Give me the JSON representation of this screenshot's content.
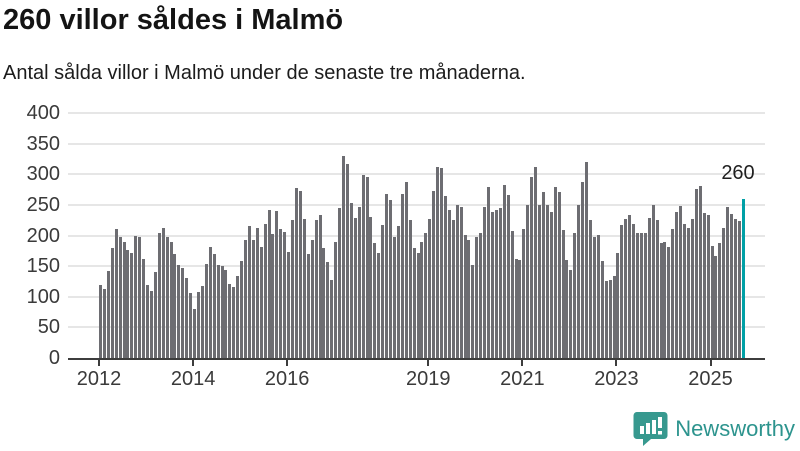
{
  "header": {
    "title": "260 villor såldes i Malmö",
    "subtitle": "Antal sålda villor i Malmö under de senaste tre månaderna."
  },
  "chart_data": {
    "type": "bar",
    "title": "260 villor såldes i Malmö",
    "subtitle": "Antal sålda villor i Malmö under de senaste tre månaderna.",
    "x_unit": "month",
    "x_start": "2012-01",
    "x_end": "2025-09",
    "ylim": [
      0,
      400
    ],
    "yticks": [
      0,
      50,
      100,
      150,
      200,
      250,
      300,
      350,
      400
    ],
    "xticks": [
      2012,
      2014,
      2016,
      2019,
      2021,
      2023,
      2025
    ],
    "grid": "horizontal",
    "legend": "none",
    "values": [
      120,
      112,
      142,
      180,
      210,
      198,
      190,
      177,
      171,
      199,
      197,
      162,
      120,
      110,
      140,
      204,
      212,
      197,
      189,
      170,
      152,
      147,
      131,
      106,
      80,
      107,
      118,
      153,
      181,
      170,
      152,
      151,
      144,
      121,
      116,
      134,
      159,
      193,
      216,
      193,
      212,
      182,
      219,
      241,
      203,
      240,
      210,
      205,
      173,
      225,
      278,
      272,
      227,
      170,
      193,
      225,
      234,
      179,
      156,
      127,
      190,
      245,
      329,
      316,
      253,
      228,
      247,
      298,
      296,
      231,
      187,
      171,
      217,
      267,
      258,
      197,
      216,
      267,
      288,
      225,
      179,
      171,
      190,
      204,
      227,
      272,
      312,
      311,
      264,
      242,
      226,
      250,
      247,
      201,
      193,
      152,
      198,
      204,
      247,
      280,
      239,
      242,
      245,
      283,
      266,
      208,
      162,
      160,
      211,
      250,
      296,
      312,
      250,
      271,
      250,
      238,
      279,
      271,
      209,
      160,
      144,
      204,
      249,
      287,
      320,
      226,
      198,
      201,
      159,
      126,
      127,
      134,
      171,
      217,
      227,
      234,
      219,
      204,
      204,
      204,
      228,
      250,
      225,
      187,
      190,
      182,
      211,
      239,
      248,
      219,
      212,
      227,
      276,
      281,
      237,
      233,
      183,
      167,
      187,
      213,
      247,
      235,
      227,
      224,
      260
    ],
    "highlight": {
      "index": 164,
      "value": 260,
      "label": "260"
    },
    "colors": {
      "bar": "#6d6d72",
      "highlight": "#00a0a6",
      "gridline": "#e6e6e6",
      "axis": "#3d3d3d"
    }
  },
  "footer": {
    "brand": "Newsworthy",
    "brand_color": "#2d948e",
    "icon_color": "#37998f"
  }
}
